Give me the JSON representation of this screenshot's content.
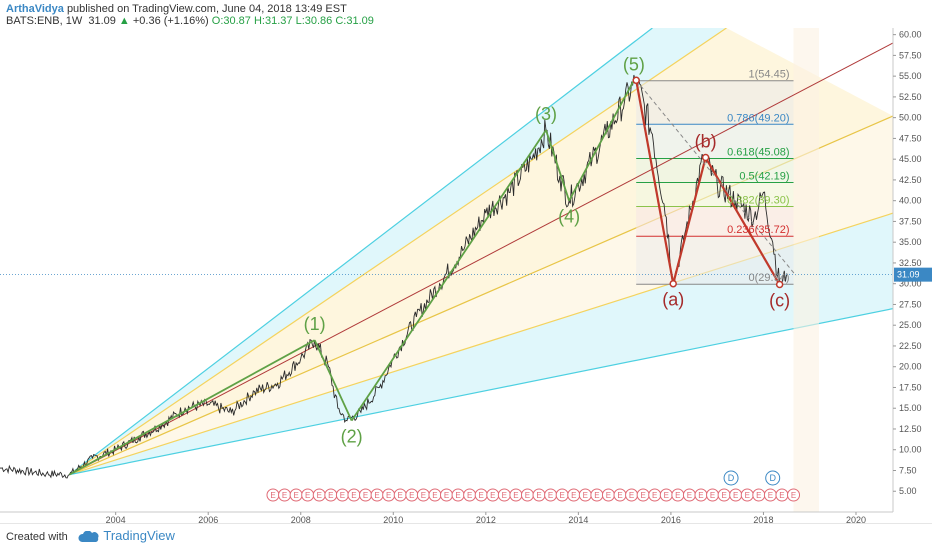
{
  "header": {
    "author": "ArthaVidya",
    "published_text": "published on TradingView.com, June 04, 2018 13:49 EST",
    "symbol": "BATS:ENB, 1W",
    "last": "31.09",
    "change": "+0.36 (+1.16%)",
    "open": "O:30.87",
    "high": "H:31.37",
    "low": "L:30.86",
    "close": "C:31.09",
    "up_arrow": "▲"
  },
  "footer": {
    "created_with": "Created with",
    "brand": "TradingView"
  },
  "colors": {
    "up": "#26a045",
    "impulse": "#5fa146",
    "corrective": "#c0392b",
    "fan": "#4dd0e1",
    "fib_gray": "#888888"
  },
  "chart_data": {
    "type": "line",
    "title": "",
    "xlabel": "",
    "ylabel": "",
    "xlim": [
      2001.5,
      2020.8
    ],
    "ylim": [
      2.5,
      60.8
    ],
    "x_ticks": [
      2004,
      2006,
      2008,
      2010,
      2012,
      2014,
      2016,
      2018,
      2020
    ],
    "y_ticks": [
      5,
      7.5,
      10,
      12.5,
      15,
      17.5,
      20,
      22.5,
      25,
      27.5,
      30,
      32.5,
      35,
      37.5,
      40,
      42.5,
      45,
      47.5,
      50,
      52.5,
      55,
      57.5,
      60
    ],
    "y_tick_labels": [
      "5.00",
      "7.50",
      "10.00",
      "12.50",
      "15.00",
      "17.50",
      "20.00",
      "22.50",
      "25.00",
      "27.50",
      "30.00",
      "32.50",
      "35.00",
      "37.50",
      "40.00",
      "42.50",
      "45.00",
      "47.50",
      "50.00",
      "52.50",
      "55.00",
      "57.50",
      "60.00"
    ],
    "price_path": [
      [
        2001.5,
        7.8
      ],
      [
        2002.5,
        7.1
      ],
      [
        2003.0,
        7.0
      ],
      [
        2003.5,
        9.0
      ],
      [
        2004.0,
        10.0
      ],
      [
        2004.5,
        11.5
      ],
      [
        2005.0,
        13.0
      ],
      [
        2005.5,
        15.0
      ],
      [
        2006.0,
        15.5
      ],
      [
        2006.5,
        14.5
      ],
      [
        2007.0,
        17.0
      ],
      [
        2007.5,
        18.0
      ],
      [
        2008.0,
        21.0
      ],
      [
        2008.3,
        23.2
      ],
      [
        2008.6,
        20.0
      ],
      [
        2008.8,
        15.0
      ],
      [
        2009.0,
        13.5
      ],
      [
        2009.3,
        14.5
      ],
      [
        2009.7,
        17.5
      ],
      [
        2010.0,
        21.0
      ],
      [
        2010.5,
        26.0
      ],
      [
        2011.0,
        30.0
      ],
      [
        2011.5,
        34.0
      ],
      [
        2012.0,
        38.5
      ],
      [
        2012.5,
        41.0
      ],
      [
        2013.0,
        45.0
      ],
      [
        2013.3,
        48.5
      ],
      [
        2013.6,
        43.0
      ],
      [
        2013.8,
        40.0
      ],
      [
        2014.0,
        42.0
      ],
      [
        2014.3,
        45.0
      ],
      [
        2014.6,
        48.0
      ],
      [
        2015.0,
        52.0
      ],
      [
        2015.25,
        54.5
      ],
      [
        2015.6,
        48.0
      ],
      [
        2015.9,
        38.0
      ],
      [
        2016.05,
        30.0
      ],
      [
        2016.3,
        36.0
      ],
      [
        2016.7,
        45.2
      ],
      [
        2017.0,
        42.0
      ],
      [
        2017.4,
        40.0
      ],
      [
        2017.8,
        38.0
      ],
      [
        2018.0,
        41.0
      ],
      [
        2018.2,
        35.0
      ],
      [
        2018.35,
        29.9
      ],
      [
        2018.5,
        31.1
      ]
    ],
    "fib_levels": [
      {
        "ratio": "1",
        "value": 54.45,
        "label": "1(54.45)",
        "color": "#888888"
      },
      {
        "ratio": "0.786",
        "value": 49.2,
        "label": "0.786(49.20)",
        "color": "#3b88c4"
      },
      {
        "ratio": "0.618",
        "value": 45.08,
        "label": "0.618(45.08)",
        "color": "#26a045"
      },
      {
        "ratio": "0.5",
        "value": 42.19,
        "label": "0.5(42.19)",
        "color": "#26a045"
      },
      {
        "ratio": "0.382",
        "value": 39.3,
        "label": "0.382(39.30)",
        "color": "#8bc34a"
      },
      {
        "ratio": "0.236",
        "value": 35.72,
        "label": "0.236(35.72)",
        "color": "#d32f2f"
      },
      {
        "ratio": "0",
        "value": 29.94,
        "label": "0(29.94)",
        "color": "#888888"
      }
    ],
    "fib_range_x": [
      2015.25,
      2018.65
    ],
    "wave_labels": [
      {
        "label": "(1)",
        "x": 2008.3,
        "y": 23.2,
        "pos": "above",
        "color": "#5fa146"
      },
      {
        "label": "(2)",
        "x": 2009.1,
        "y": 13.5,
        "pos": "below",
        "color": "#5fa146"
      },
      {
        "label": "(3)",
        "x": 2013.3,
        "y": 48.5,
        "pos": "above",
        "color": "#5fa146"
      },
      {
        "label": "(4)",
        "x": 2013.8,
        "y": 40.0,
        "pos": "below",
        "color": "#5fa146"
      },
      {
        "label": "(5)",
        "x": 2015.2,
        "y": 54.5,
        "pos": "above",
        "color": "#5fa146"
      },
      {
        "label": "(a)",
        "x": 2016.05,
        "y": 30.0,
        "pos": "below",
        "color": "#a52a2a"
      },
      {
        "label": "(b)",
        "x": 2016.75,
        "y": 45.2,
        "pos": "above",
        "color": "#a52a2a"
      },
      {
        "label": "(c)",
        "x": 2018.35,
        "y": 29.9,
        "pos": "below",
        "color": "#a52a2a"
      }
    ],
    "impulse_lines": [
      [
        [
          2003.0,
          7.0
        ],
        [
          2008.3,
          23.2
        ]
      ],
      [
        [
          2008.3,
          23.2
        ],
        [
          2009.1,
          13.5
        ]
      ],
      [
        [
          2009.1,
          13.5
        ],
        [
          2013.3,
          48.5
        ]
      ],
      [
        [
          2013.3,
          48.5
        ],
        [
          2013.8,
          40.0
        ]
      ],
      [
        [
          2013.8,
          40.0
        ],
        [
          2015.2,
          54.5
        ]
      ]
    ],
    "corrective_lines": [
      [
        [
          2015.25,
          54.5
        ],
        [
          2016.05,
          30.0
        ]
      ],
      [
        [
          2016.05,
          30.0
        ],
        [
          2016.75,
          45.2
        ]
      ],
      [
        [
          2016.75,
          45.2
        ],
        [
          2018.35,
          29.9
        ]
      ]
    ],
    "projection_line": [
      [
        2015.25,
        54.5
      ],
      [
        2018.7,
        31.0
      ]
    ],
    "trend_line": [
      [
        2003.0,
        7.0
      ],
      [
        2020.8,
        59.0
      ]
    ],
    "fan_origin": [
      2003.0,
      7.0
    ],
    "fan_lines": [
      {
        "end": [
          2015.6,
          60.8
        ],
        "color": "#4dd0e1"
      },
      {
        "end": [
          2017.2,
          60.8
        ],
        "color": "#f4d35e"
      },
      {
        "end": [
          2020.8,
          50.2
        ],
        "color": "#e8c547"
      },
      {
        "end": [
          2020.8,
          38.5
        ],
        "color": "#f4d35e"
      },
      {
        "end": [
          2020.8,
          27.0
        ],
        "color": "#4dd0e1"
      }
    ],
    "current_price": 31.09,
    "earnings_markers_x": [
      2007.4,
      2007.65,
      2007.9,
      2008.15,
      2008.4,
      2008.65,
      2008.9,
      2009.15,
      2009.4,
      2009.65,
      2009.9,
      2010.15,
      2010.4,
      2010.65,
      2010.9,
      2011.15,
      2011.4,
      2011.65,
      2011.9,
      2012.15,
      2012.4,
      2012.65,
      2012.9,
      2013.15,
      2013.4,
      2013.65,
      2013.9,
      2014.15,
      2014.4,
      2014.65,
      2014.9,
      2015.15,
      2015.4,
      2015.65,
      2015.9,
      2016.15,
      2016.4,
      2016.65,
      2016.9,
      2017.15,
      2017.4,
      2017.65,
      2017.9,
      2018.15,
      2018.4,
      2018.65
    ],
    "earnings_marker_label": "E",
    "dividend_markers_x": [
      2017.3,
      2018.2
    ],
    "dividend_marker_label": "D"
  }
}
